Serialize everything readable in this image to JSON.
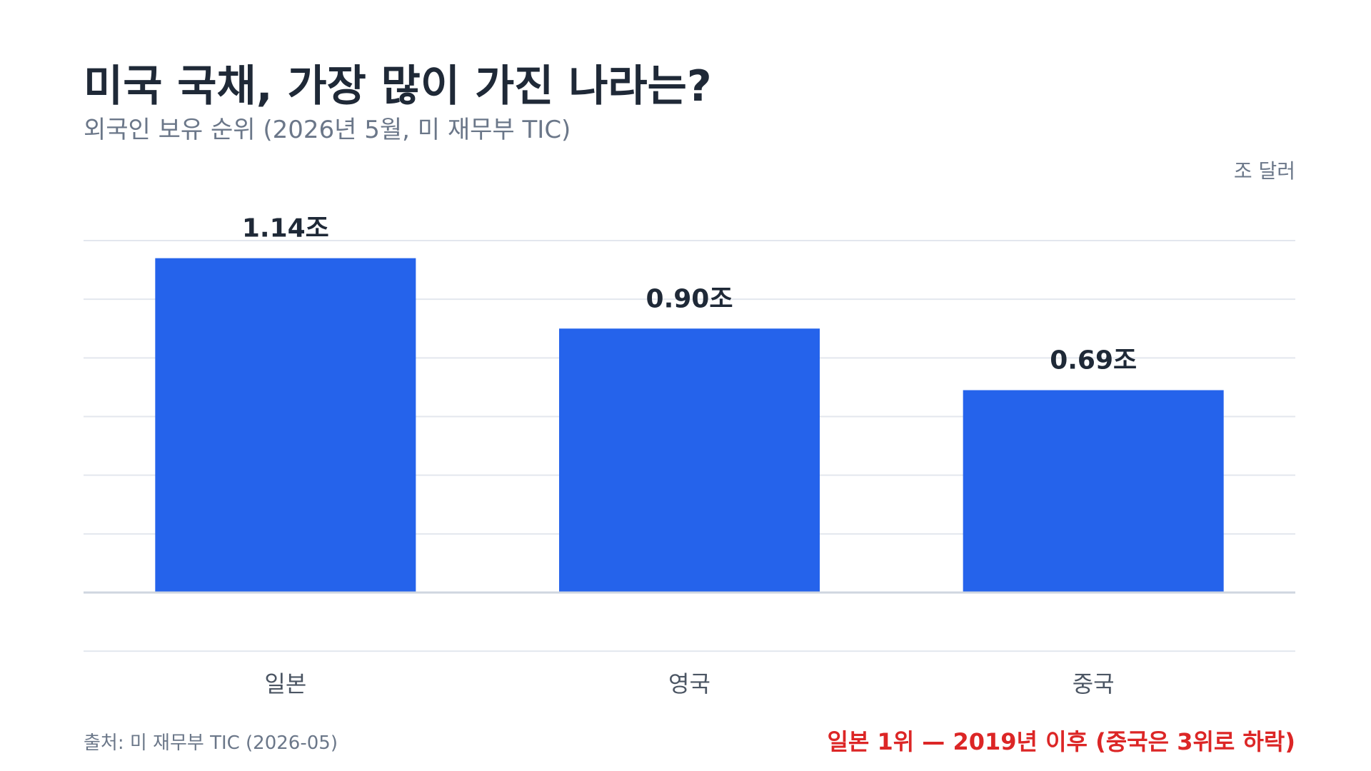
{
  "title": "미국 국채, 가장 많이 가진 나라는?",
  "subtitle": "외국인 보유 순위 (2026년 5월, 미 재무부 TIC)",
  "unit_label": "조 달러",
  "source": "출처: 미 재무부 TIC (2026-05)",
  "note": "일본 1위 — 2019년 이후 (중국은 3위로 하락)",
  "colors": {
    "bar": "#2563eb",
    "grid": "#e3e7ee",
    "baseline": "#cfd6e0",
    "value_label": "#1f2937",
    "category_label": "#4b5563",
    "note": "#dc2626"
  },
  "chart_data": {
    "type": "bar",
    "categories": [
      "일본",
      "영국",
      "중국"
    ],
    "values": [
      1.14,
      0.9,
      0.69
    ],
    "value_labels": [
      "1.14조",
      "0.90조",
      "0.69조"
    ],
    "ylim": [
      0,
      1.2
    ],
    "grid": true,
    "legend": "none"
  }
}
